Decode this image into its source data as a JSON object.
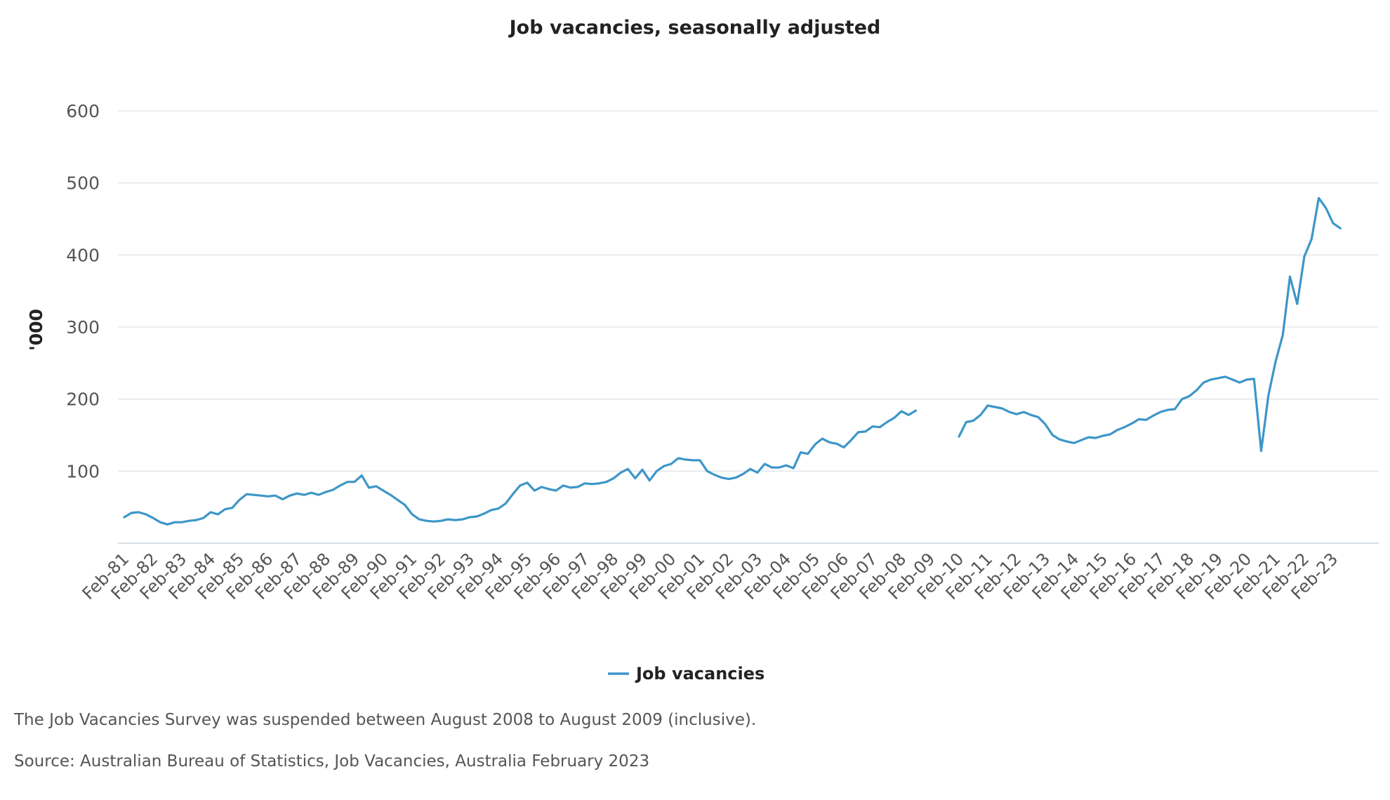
{
  "notes": {
    "suspension": "The Job Vacancies Survey was suspended between August 2008 to August 2009 (inclusive).",
    "source": "Source: Australian Bureau of Statistics, Job Vacancies, Australia February 2023"
  },
  "chart_data": {
    "type": "line",
    "title": "Job vacancies, seasonally adjusted",
    "xlabel": "",
    "ylabel": "'000",
    "ylim": [
      0,
      600
    ],
    "yticks": [
      100,
      200,
      300,
      400,
      500,
      600
    ],
    "grid": true,
    "legend_position": "bottom-center",
    "x_tick_labels": [
      "Feb-81",
      "Feb-82",
      "Feb-83",
      "Feb-84",
      "Feb-85",
      "Feb-86",
      "Feb-87",
      "Feb-88",
      "Feb-89",
      "Feb-90",
      "Feb-91",
      "Feb-92",
      "Feb-93",
      "Feb-94",
      "Feb-95",
      "Feb-96",
      "Feb-97",
      "Feb-98",
      "Feb-99",
      "Feb-00",
      "Feb-01",
      "Feb-02",
      "Feb-03",
      "Feb-04",
      "Feb-05",
      "Feb-06",
      "Feb-07",
      "Feb-08",
      "Feb-09",
      "Feb-10",
      "Feb-11",
      "Feb-12",
      "Feb-13",
      "Feb-14",
      "Feb-15",
      "Feb-16",
      "Feb-17",
      "Feb-18",
      "Feb-19",
      "Feb-20",
      "Feb-21",
      "Feb-22",
      "Feb-23"
    ],
    "x_start": "Feb-81",
    "x_step": "quarter",
    "series": [
      {
        "name": "Job vacancies",
        "color": "#3d96c8",
        "values": [
          36,
          42,
          43,
          40,
          35,
          29,
          26,
          29,
          29,
          31,
          32,
          35,
          43,
          40,
          47,
          49,
          60,
          68,
          67,
          66,
          65,
          66,
          61,
          66,
          69,
          67,
          70,
          67,
          71,
          74,
          80,
          85,
          85,
          94,
          77,
          79,
          73,
          67,
          60,
          53,
          40,
          33,
          31,
          30,
          31,
          33,
          32,
          33,
          36,
          37,
          41,
          46,
          48,
          55,
          68,
          80,
          84,
          73,
          78,
          75,
          73,
          80,
          77,
          78,
          83,
          82,
          83,
          85,
          90,
          98,
          103,
          90,
          102,
          87,
          100,
          107,
          110,
          118,
          116,
          115,
          115,
          100,
          95,
          91,
          89,
          91,
          96,
          103,
          98,
          110,
          105,
          105,
          108,
          104,
          126,
          124,
          137,
          145,
          140,
          138,
          133,
          143,
          154,
          155,
          162,
          161,
          168,
          174,
          183,
          178,
          184,
          null,
          null,
          null,
          null,
          null,
          148,
          168,
          170,
          178,
          191,
          189,
          187,
          182,
          179,
          182,
          178,
          175,
          165,
          150,
          144,
          141,
          139,
          143,
          147,
          146,
          149,
          151,
          157,
          161,
          166,
          172,
          171,
          177,
          182,
          185,
          186,
          200,
          204,
          212,
          223,
          227,
          229,
          231,
          227,
          223,
          227,
          228,
          128,
          205,
          252,
          289,
          370,
          332,
          398,
          422,
          479,
          465,
          444,
          437
        ]
      }
    ]
  }
}
